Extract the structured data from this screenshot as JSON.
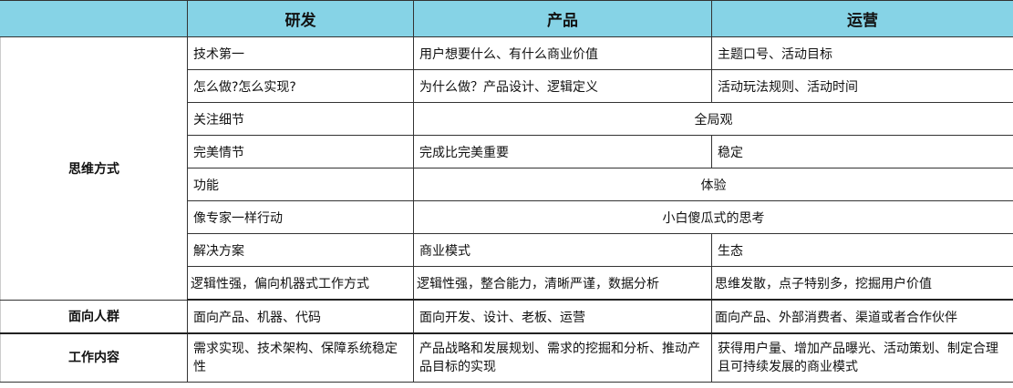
{
  "header": [
    "",
    "研发",
    "产品",
    "运营"
  ],
  "sections": [
    {
      "category": "思维方式",
      "rows": [
        [
          "技术第一",
          "用户想要什么、有什么商业价值",
          "主题口号、活动目标"
        ],
        [
          "怎么做?怎么实现?",
          "为什么做？产品设计、逻辑定义",
          "活动玩法规则、活动时间"
        ],
        [
          "关注细节",
          "全局观"
        ],
        [
          "完美情节",
          "完成比完美重要",
          "稳定"
        ],
        [
          "功能",
          "体验"
        ],
        [
          "像专家一样行动",
          "小白傻瓜式的思考"
        ],
        [
          "解决方案",
          "商业模式",
          "生态"
        ],
        [
          "逻辑性强，偏向机器式工作方式",
          "逻辑性强，整合能力，清晰严谨，数据分析",
          "思维发散，点子特别多，挖掘用户价值"
        ]
      ]
    },
    {
      "category": "面向人群",
      "rows": [
        [
          "面向产品、机器、代码",
          "面向开发、设计、老板、运营",
          "面向产品、外部消费者、渠道或者合作伙伴"
        ]
      ]
    },
    {
      "category": "工作内容",
      "rows": [
        [
          "需求实现、技术架构、保障系统稳定性",
          "产品战略和发展规划、需求的挖掘和分析、推动产品目标的实现",
          "获得用户量、增加产品曝光、活动策划、制定合理且可持续发展的商业模式"
        ]
      ]
    }
  ]
}
